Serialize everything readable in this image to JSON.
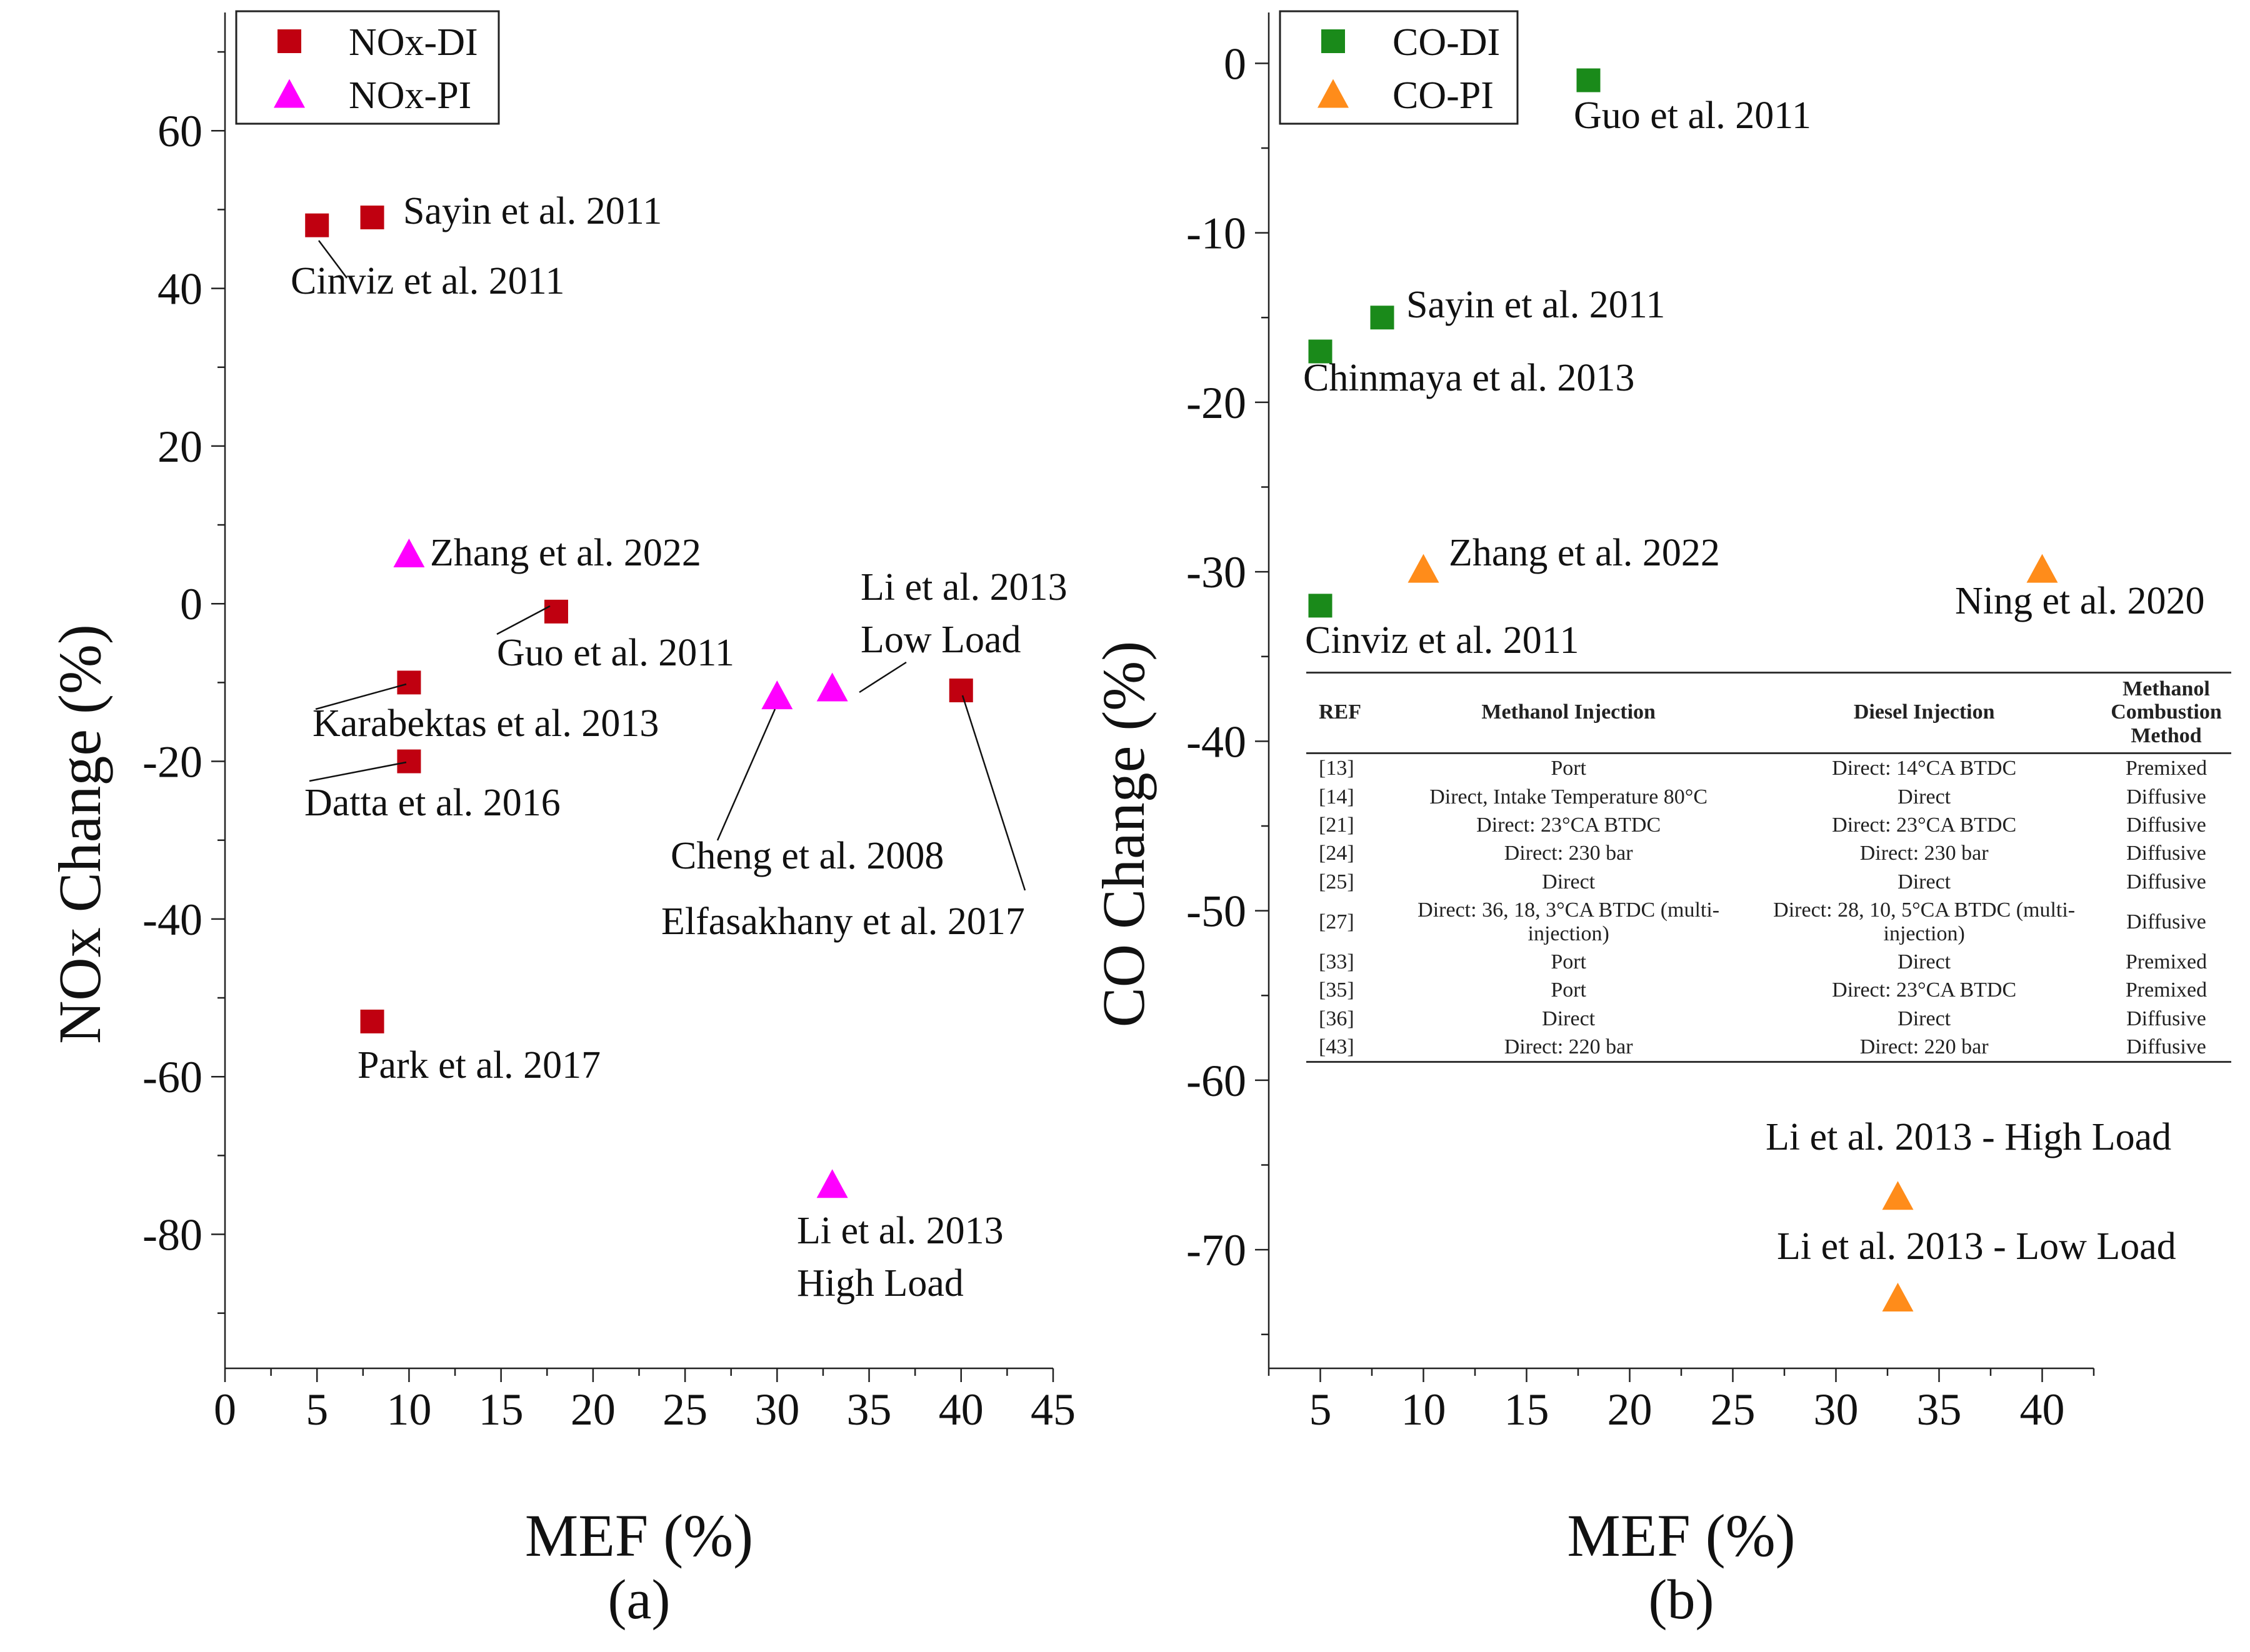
{
  "chart_data": [
    {
      "type": "scatter",
      "panel_label": "(a)",
      "xlabel": "MEF (%)",
      "ylabel": "NOx Change (%)",
      "xlim": [
        0,
        45
      ],
      "ylim": [
        -97,
        75
      ],
      "xticks": [
        0,
        5,
        10,
        15,
        20,
        25,
        30,
        35,
        40,
        45
      ],
      "yticks": [
        -80,
        -60,
        -40,
        -20,
        0,
        20,
        40,
        60
      ],
      "legend_position": "top-left",
      "series": [
        {
          "name": "NOx-DI",
          "marker": "square",
          "color": "#c00010",
          "points": [
            {
              "x": 5,
              "y": 48,
              "label": "Cinviz et al. 2011"
            },
            {
              "x": 8,
              "y": 49,
              "label": "Sayin et al. 2011"
            },
            {
              "x": 18,
              "y": -1,
              "label": "Guo et al. 2011"
            },
            {
              "x": 10,
              "y": -10,
              "label": "Karabektas et al. 2013"
            },
            {
              "x": 10,
              "y": -20,
              "label": "Datta et al. 2016"
            },
            {
              "x": 8,
              "y": -53,
              "label": "Park et al. 2017"
            },
            {
              "x": 40,
              "y": -11,
              "label": "Elfasakhany et al. 2017"
            }
          ]
        },
        {
          "name": "NOx-PI",
          "marker": "triangle",
          "color": "#ff00ff",
          "points": [
            {
              "x": 10,
              "y": 6,
              "label": "Zhang et al. 2022"
            },
            {
              "x": 30,
              "y": -12,
              "label": "Cheng et al. 2008"
            },
            {
              "x": 33,
              "y": -11,
              "label": "Li et al. 2013\nLow Load"
            },
            {
              "x": 33,
              "y": -74,
              "label": "Li et al. 2013\nHigh Load"
            }
          ]
        }
      ]
    },
    {
      "type": "scatter",
      "panel_label": "(b)",
      "xlabel": "MEF (%)",
      "ylabel": "CO Change (%)",
      "xlim": [
        2.5,
        42.5
      ],
      "ylim": [
        -77,
        3
      ],
      "xticks": [
        5,
        10,
        15,
        20,
        25,
        30,
        35,
        40
      ],
      "yticks": [
        -70,
        -60,
        -50,
        -40,
        -30,
        -20,
        -10,
        0
      ],
      "legend_position": "top-left",
      "series": [
        {
          "name": "CO-DI",
          "marker": "square",
          "color": "#1a8a1a",
          "points": [
            {
              "x": 18,
              "y": -1,
              "label": "Guo et al. 2011"
            },
            {
              "x": 8,
              "y": -15,
              "label": "Sayin et al. 2011"
            },
            {
              "x": 5,
              "y": -17,
              "label": "Chinmaya et al. 2013"
            },
            {
              "x": 5,
              "y": -32,
              "label": "Cinviz et al. 2011"
            }
          ]
        },
        {
          "name": "CO-PI",
          "marker": "triangle",
          "color": "#ff8c1a",
          "points": [
            {
              "x": 10,
              "y": -30,
              "label": "Zhang et al. 2022"
            },
            {
              "x": 40,
              "y": -30,
              "label": "Ning et al. 2020"
            },
            {
              "x": 33,
              "y": -67,
              "label": "Li et al. 2013 - High Load"
            },
            {
              "x": 33,
              "y": -73,
              "label": "Li et al. 2013 - Low Load"
            }
          ]
        }
      ]
    }
  ],
  "ref_table": {
    "headers": [
      "REF",
      "Methanol Injection",
      "Diesel Injection",
      "Methanol Combustion Method"
    ],
    "rows": [
      [
        "[13]",
        "Port",
        "Direct: 14°CA BTDC",
        "Premixed"
      ],
      [
        "[14]",
        "Direct, Intake Temperature 80°C",
        "Direct",
        "Diffusive"
      ],
      [
        "[21]",
        "Direct: 23°CA BTDC",
        "Direct: 23°CA BTDC",
        "Diffusive"
      ],
      [
        "[24]",
        "Direct: 230 bar",
        "Direct: 230 bar",
        "Diffusive"
      ],
      [
        "[25]",
        "Direct",
        "Direct",
        "Diffusive"
      ],
      [
        "[27]",
        "Direct: 36, 18, 3°CA BTDC (multi-injection)",
        "Direct: 28, 10, 5°CA BTDC (multi-injection)",
        "Diffusive"
      ],
      [
        "[33]",
        "Port",
        "Direct",
        "Premixed"
      ],
      [
        "[35]",
        "Port",
        "Direct: 23°CA BTDC",
        "Premixed"
      ],
      [
        "[36]",
        "Direct",
        "Direct",
        "Diffusive"
      ],
      [
        "[43]",
        "Direct: 220 bar",
        "Direct: 220 bar",
        "Diffusive"
      ]
    ]
  }
}
